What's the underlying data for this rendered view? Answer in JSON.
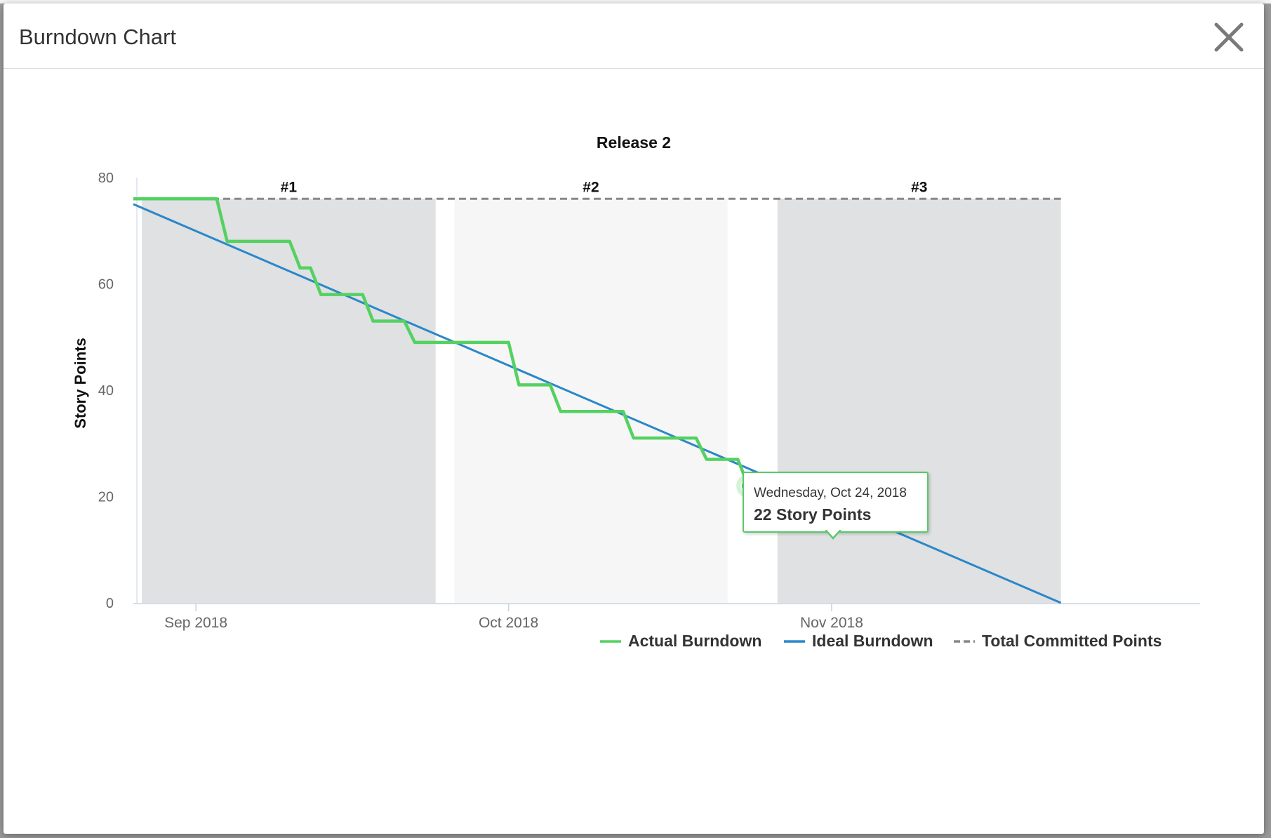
{
  "modal": {
    "title": "Burndown Chart",
    "close_icon": "close-icon"
  },
  "colors": {
    "actual": "#54d160",
    "ideal": "#2b87c8",
    "committed": "#888888",
    "sprint_band_dark": "#dfe1e3",
    "sprint_band_light": "#f6f6f6"
  },
  "tooltip": {
    "date": "Wednesday, Oct 24, 2018",
    "value": "22 Story Points"
  },
  "chart_data": {
    "type": "line",
    "title": "Release 2",
    "xlabel": "",
    "ylabel": "Story Points",
    "ylim": [
      0,
      80
    ],
    "y_ticks": [
      0,
      20,
      40,
      60,
      80
    ],
    "x_range": [
      "2018-08-26",
      "2018-11-15"
    ],
    "x_ticks": [
      {
        "date": "2018-09-01",
        "label": "Sep 2018"
      },
      {
        "date": "2018-10-01",
        "label": "Oct 2018"
      },
      {
        "date": "2018-11-01",
        "label": "Nov 2018"
      }
    ],
    "sprints": [
      {
        "label": "#1",
        "start": "2018-08-26",
        "end": "2018-09-24"
      },
      {
        "label": "#2",
        "start": "2018-09-25",
        "end": "2018-10-22"
      },
      {
        "label": "#3",
        "start": "2018-10-26",
        "end": "2018-11-23"
      }
    ],
    "series": [
      {
        "name": "Actual Burndown",
        "points": [
          [
            "2018-08-26",
            76
          ],
          [
            "2018-09-03",
            76
          ],
          [
            "2018-09-04",
            68
          ],
          [
            "2018-09-10",
            68
          ],
          [
            "2018-09-11",
            63
          ],
          [
            "2018-09-12",
            63
          ],
          [
            "2018-09-13",
            58
          ],
          [
            "2018-09-17",
            58
          ],
          [
            "2018-09-18",
            53
          ],
          [
            "2018-09-21",
            53
          ],
          [
            "2018-09-22",
            49
          ],
          [
            "2018-10-01",
            49
          ],
          [
            "2018-10-02",
            41
          ],
          [
            "2018-10-05",
            41
          ],
          [
            "2018-10-06",
            36
          ],
          [
            "2018-10-12",
            36
          ],
          [
            "2018-10-13",
            31
          ],
          [
            "2018-10-19",
            31
          ],
          [
            "2018-10-20",
            27
          ],
          [
            "2018-10-23",
            27
          ],
          [
            "2018-10-24",
            22
          ]
        ]
      },
      {
        "name": "Ideal Burndown",
        "points": [
          [
            "2018-08-26",
            75
          ],
          [
            "2018-11-23",
            0
          ]
        ]
      },
      {
        "name": "Total Committed Points",
        "points": [
          [
            "2018-08-26",
            76
          ],
          [
            "2018-11-23",
            76
          ]
        ]
      }
    ],
    "highlight": {
      "date": "2018-10-24",
      "value": 22
    },
    "legend_position": "bottom-right"
  }
}
